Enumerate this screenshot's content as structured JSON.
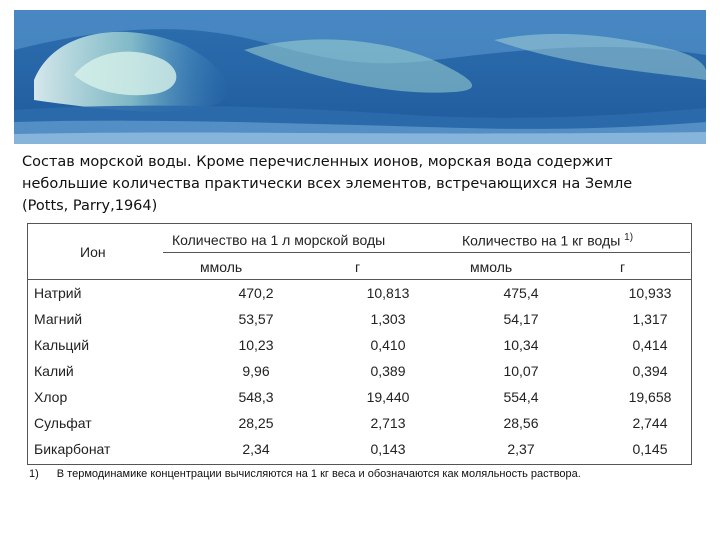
{
  "caption": {
    "text": "Состав морской воды. Кроме перечисленных ионов, морская вода содержит\nнебольшие количества  практически всех элементов, встречающихся на Земле\n(Potts, Parry,1964)"
  },
  "table": {
    "ion_header": "Ион",
    "group_1_header": "Количество на 1 л морской воды",
    "group_2_header": "Количество на 1 кг воды",
    "group_2_superscript": "1)",
    "sub_headers": [
      "ммоль",
      "г",
      "ммоль",
      "г"
    ],
    "rows": [
      {
        "ion": "Натрий",
        "values": [
          "470,2",
          "10,813",
          "475,4",
          "10,933"
        ]
      },
      {
        "ion": "Магний",
        "values": [
          "53,57",
          "1,303",
          "54,17",
          "1,317"
        ]
      },
      {
        "ion": "Кальций",
        "values": [
          "10,23",
          "0,410",
          "10,34",
          "0,414"
        ]
      },
      {
        "ion": "Калий",
        "values": [
          "9,96",
          "0,389",
          "10,07",
          "0,394"
        ]
      },
      {
        "ion": "Хлор",
        "values": [
          "548,3",
          "19,440",
          "554,4",
          "19,658"
        ]
      },
      {
        "ion": "Сульфат",
        "values": [
          "28,25",
          "2,713",
          "28,56",
          "2,744"
        ]
      },
      {
        "ion": "Бикарбонат",
        "values": [
          "2,34",
          "0,143",
          "2,37",
          "0,145"
        ]
      }
    ]
  },
  "footnote": {
    "mark": "1)",
    "text": "В термодинамике концентрации вычисляются на 1 кг веса и обозначаются как моляльность раствора."
  },
  "banner": {
    "icon": "ocean-wave-image"
  }
}
